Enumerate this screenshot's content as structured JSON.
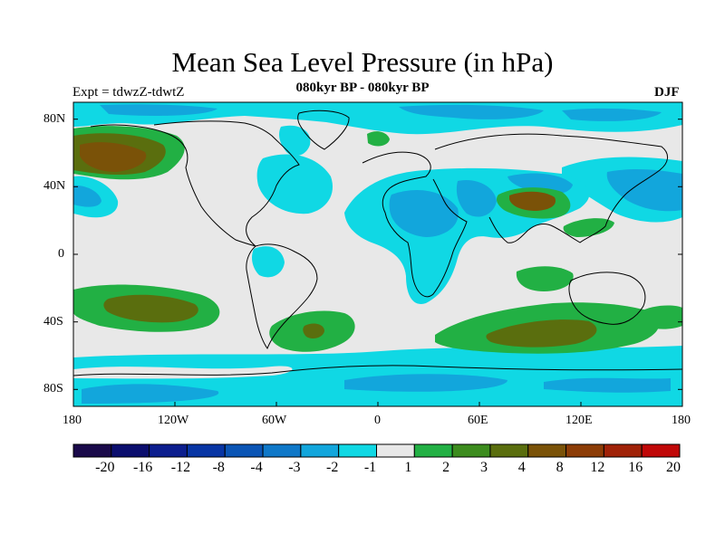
{
  "title": "Mean Sea Level Pressure (in hPa)",
  "subtitle": "080kyr BP - 080kyr BP",
  "experiment": "Expt = tdwzZ-tdwtZ",
  "season": "DJF",
  "axes": {
    "lat_labels": [
      "80N",
      "40N",
      "0",
      "40S",
      "80S"
    ],
    "lat_values": [
      80,
      40,
      0,
      -40,
      -80
    ],
    "lon_labels": [
      "180",
      "120W",
      "60W",
      "0",
      "60E",
      "120E",
      "180"
    ],
    "lon_values": [
      -180,
      -120,
      -60,
      0,
      60,
      120,
      180
    ]
  },
  "colorbar": {
    "colors": [
      "#1a0a4a",
      "#0b0e6e",
      "#0c1e8e",
      "#0835a4",
      "#0b55b5",
      "#0f78c8",
      "#12a6dc",
      "#10d8e4",
      "#e8e8e8",
      "#22b044",
      "#3c8c1e",
      "#5a6e0e",
      "#7a5208",
      "#8c3c06",
      "#a02208",
      "#c00808"
    ],
    "labels": [
      "-20",
      "-16",
      "-12",
      "-8",
      "-4",
      "-3",
      "-2",
      "-1",
      "1",
      "2",
      "3",
      "4",
      "8",
      "12",
      "16",
      "20"
    ]
  },
  "colors": {
    "neutral": "#e8e8e8",
    "light_cyan": "#10d8e4",
    "cyan": "#12a6dc",
    "green": "#22b044",
    "olive": "#5a6e0e",
    "brown": "#7a5208"
  }
}
